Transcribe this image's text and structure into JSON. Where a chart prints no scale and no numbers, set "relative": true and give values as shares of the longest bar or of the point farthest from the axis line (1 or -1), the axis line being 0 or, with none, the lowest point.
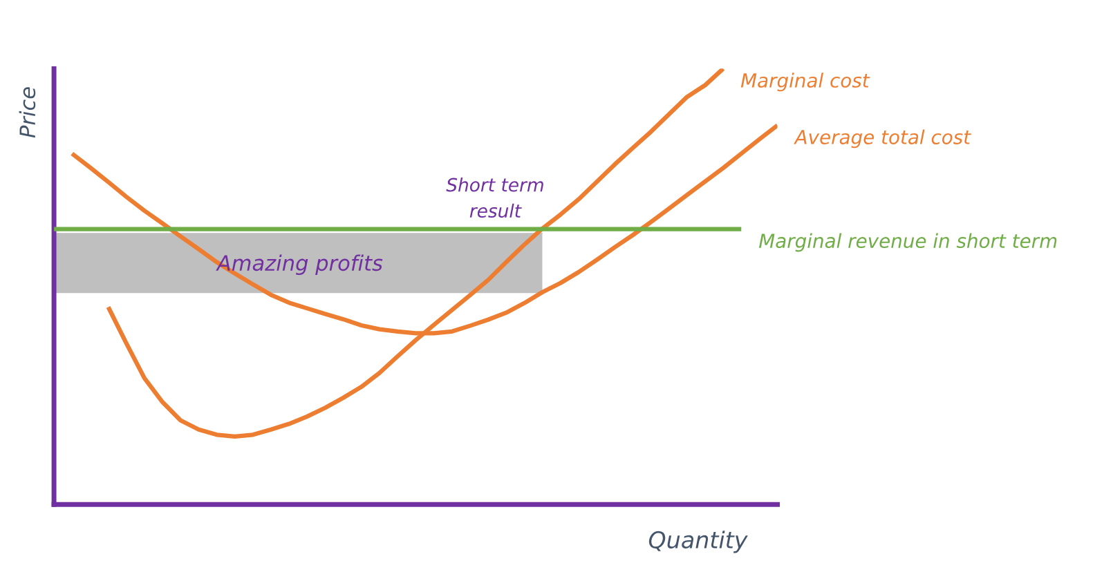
{
  "chart_data": {
    "type": "line",
    "relative": true,
    "xlabel": "Quantity",
    "ylabel": "Price",
    "categories": [
      null,
      null,
      null,
      null,
      null,
      null,
      null,
      null,
      null,
      null,
      null,
      null,
      null,
      null,
      null,
      null,
      null,
      null,
      null,
      null,
      null,
      null,
      null,
      null,
      null,
      null,
      null,
      null,
      null,
      null,
      null,
      null,
      null,
      null,
      null,
      null,
      null,
      null,
      null,
      null,
      null
    ],
    "series": [
      {
        "name": "Marginal cost",
        "color": "#ed7d31",
        "values": [
          null,
          null,
          null,
          0.453,
          0.37,
          0.29,
          0.235,
          0.193,
          0.172,
          0.16,
          0.156,
          0.16,
          0.172,
          0.185,
          0.202,
          0.222,
          0.245,
          0.27,
          0.302,
          0.34,
          0.377,
          0.412,
          0.446,
          0.48,
          0.515,
          0.556,
          0.596,
          0.633,
          0.665,
          0.7,
          0.74,
          0.78,
          0.818,
          0.855,
          0.895,
          0.935,
          0.962,
          1.0,
          null,
          null,
          null
        ]
      },
      {
        "name": "Average total cost",
        "color": "#ed7d31",
        "values": [
          null,
          0.805,
          0.773,
          0.74,
          0.706,
          0.674,
          0.645,
          0.615,
          0.586,
          0.556,
          0.53,
          0.505,
          0.481,
          0.463,
          0.45,
          0.437,
          0.425,
          0.411,
          0.402,
          0.397,
          0.393,
          0.393,
          0.397,
          0.41,
          0.424,
          0.44,
          0.462,
          0.487,
          0.508,
          0.533,
          0.561,
          0.59,
          0.618,
          0.648,
          0.679,
          0.71,
          0.741,
          0.772,
          0.805,
          0.838,
          0.87
        ]
      },
      {
        "name": "Marginal revenue in short term",
        "color": "#70ad47",
        "values": [
          0.632,
          0.632,
          0.632,
          0.632,
          0.632,
          0.632,
          0.632,
          0.632,
          0.632,
          0.632,
          0.632,
          0.632,
          0.632,
          0.632,
          0.632,
          0.632,
          0.632,
          0.632,
          0.632,
          0.632,
          0.632,
          0.632,
          0.632,
          0.632,
          0.632,
          0.632,
          0.632,
          0.632,
          0.632,
          0.632,
          0.632,
          0.632,
          0.632,
          0.632,
          0.632,
          0.632,
          0.632,
          0.632,
          0.632,
          null,
          null
        ]
      },
      {
        "type": "line",
        "color": "#bfbfbf",
        "values": [
          0.622,
          0.622,
          0.622,
          0.622,
          0.622,
          0.622,
          0.622,
          0.622,
          0.622,
          0.622,
          0.622,
          0.622,
          0.622,
          0.622,
          0.622,
          0.622,
          0.622,
          0.622,
          0.622,
          0.622,
          0.622,
          0.622,
          0.622,
          0.622,
          0.622,
          0.622,
          0.622,
          0.622,
          null,
          null,
          null,
          null,
          null,
          null,
          null,
          null,
          null,
          null,
          null,
          null,
          null
        ],
        "upper": [
          0.622,
          0.622,
          0.622,
          0.622,
          0.622,
          0.622,
          0.622,
          0.622,
          0.622,
          0.622,
          0.622,
          0.622,
          0.622,
          0.622,
          0.622,
          0.622,
          0.622,
          0.622,
          0.622,
          0.622,
          0.622,
          0.622,
          0.622,
          0.622,
          0.622,
          0.622,
          0.622,
          0.622,
          null,
          null,
          null,
          null,
          null,
          null,
          null,
          null,
          null,
          null,
          null,
          null,
          null
        ],
        "lower": [
          0.485,
          0.485,
          0.485,
          0.485,
          0.485,
          0.485,
          0.485,
          0.485,
          0.485,
          0.485,
          0.485,
          0.485,
          0.485,
          0.485,
          0.485,
          0.485,
          0.485,
          0.485,
          0.485,
          0.485,
          0.485,
          0.485,
          0.485,
          0.485,
          0.485,
          0.485,
          0.485,
          0.485,
          null,
          null,
          null,
          null,
          null,
          null,
          null,
          null,
          null,
          null,
          null,
          null,
          null
        ]
      }
    ],
    "annotations": [
      "Amazing profits",
      "Short term\nresult"
    ]
  }
}
